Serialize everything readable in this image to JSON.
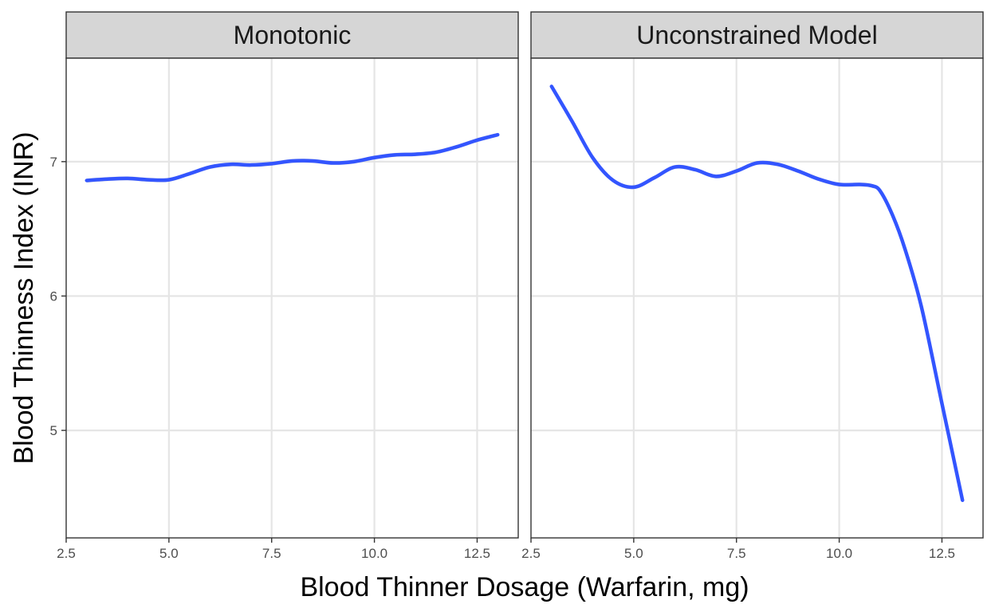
{
  "chart_data": {
    "type": "line",
    "facet_layout": "1 row, 2 columns, shared y-axis",
    "xlabel": "Blood Thinner Dosage (Warfarin, mg)",
    "ylabel": "Blood Thinness Index (INR)",
    "xlim": [
      2.5,
      13.5
    ],
    "ylim": [
      4.2,
      7.77
    ],
    "x_ticks": [
      2.5,
      5.0,
      7.5,
      10.0,
      12.5
    ],
    "x_tick_labels": [
      "2.5",
      "5.0",
      "7.5",
      "10.0",
      "12.5"
    ],
    "y_ticks": [
      5,
      6,
      7
    ],
    "y_tick_labels": [
      "5",
      "6",
      "7"
    ],
    "grid": true,
    "line_color": "#3355ff",
    "band_color": "#999999",
    "strip_color": "#d6d6d6",
    "panels": [
      {
        "strip_label": "Monotonic",
        "series": {
          "x": [
            3.0,
            3.5,
            4.0,
            4.5,
            5.0,
            5.5,
            6.0,
            6.5,
            7.0,
            7.5,
            8.0,
            8.5,
            9.0,
            9.5,
            10.0,
            10.5,
            11.0,
            11.5,
            12.0,
            12.5,
            13.0
          ],
          "y": [
            6.86,
            6.87,
            6.875,
            6.865,
            6.865,
            6.91,
            6.96,
            6.98,
            6.975,
            6.985,
            7.005,
            7.005,
            6.99,
            7.0,
            7.03,
            7.05,
            7.055,
            7.07,
            7.11,
            7.16,
            7.2
          ]
        }
      },
      {
        "strip_label": "Unconstrained Model",
        "series": {
          "x": [
            3.0,
            3.5,
            4.0,
            4.5,
            5.0,
            5.5,
            6.0,
            6.5,
            7.0,
            7.5,
            8.0,
            8.5,
            9.0,
            9.5,
            10.0,
            10.5,
            10.8,
            11.0,
            11.3,
            11.6,
            12.0,
            12.5,
            13.0
          ],
          "y": [
            7.56,
            7.3,
            7.03,
            6.86,
            6.81,
            6.88,
            6.96,
            6.94,
            6.89,
            6.93,
            6.99,
            6.98,
            6.93,
            6.87,
            6.83,
            6.83,
            6.82,
            6.78,
            6.6,
            6.35,
            5.92,
            5.2,
            4.48
          ]
        }
      }
    ]
  }
}
